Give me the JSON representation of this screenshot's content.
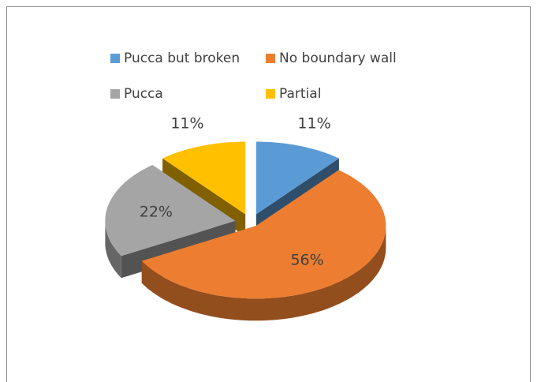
{
  "chart_data": {
    "type": "pie",
    "categories": [
      "Pucca but broken",
      "No boundary wall",
      "Pucca",
      "Partial"
    ],
    "values": [
      11,
      56,
      22,
      11
    ],
    "value_labels": [
      "11%",
      "56%",
      "22%",
      "11%"
    ],
    "colors": [
      "#5b9bd5",
      "#ed7d31",
      "#a5a5a5",
      "#ffc000"
    ],
    "legend": "top"
  }
}
